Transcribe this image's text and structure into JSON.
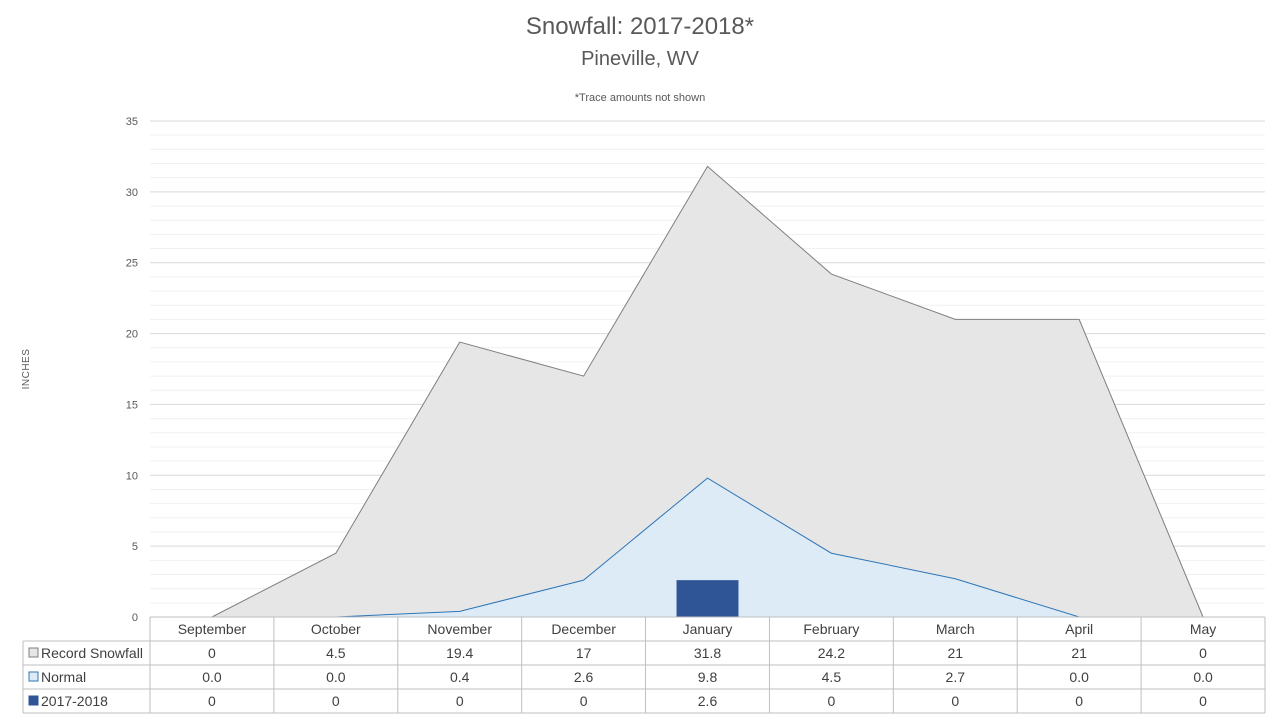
{
  "chart_data": {
    "type": "area",
    "title": "Snowfall: 2017-2018*",
    "subtitle": "Pineville, WV",
    "note": "*Trace amounts not shown",
    "ylabel": "INCHES",
    "ylim": [
      0,
      35
    ],
    "yticks": [
      0,
      5,
      10,
      15,
      20,
      25,
      30,
      35
    ],
    "grid": true,
    "legend_placement": "data-table",
    "categories": [
      "September",
      "October",
      "November",
      "December",
      "January",
      "February",
      "March",
      "April",
      "May"
    ],
    "series": [
      {
        "name": "Record Snowfall",
        "type": "area",
        "values": [
          0,
          4.5,
          19.4,
          17,
          31.8,
          24.2,
          21,
          21,
          0
        ],
        "labels": [
          "0",
          "4.5",
          "19.4",
          "17",
          "31.8",
          "24.2",
          "21",
          "21",
          "0"
        ],
        "fill": "#e6e6e6",
        "stroke": "#7f7f7f"
      },
      {
        "name": "Normal",
        "type": "area",
        "values": [
          0.0,
          0.0,
          0.4,
          2.6,
          9.8,
          4.5,
          2.7,
          0.0,
          0.0
        ],
        "labels": [
          "0.0",
          "0.0",
          "0.4",
          "2.6",
          "9.8",
          "4.5",
          "2.7",
          "0.0",
          "0.0"
        ],
        "fill": "#ddebf7",
        "stroke": "#2e75b6"
      },
      {
        "name": "2017-2018",
        "type": "bar",
        "values": [
          0,
          0,
          0,
          0,
          2.6,
          0,
          0,
          0,
          0
        ],
        "labels": [
          "0",
          "0",
          "0",
          "0",
          "2.6",
          "0",
          "0",
          "0",
          "0"
        ],
        "fill": "#2f5597",
        "stroke": "#2f5597"
      }
    ]
  }
}
